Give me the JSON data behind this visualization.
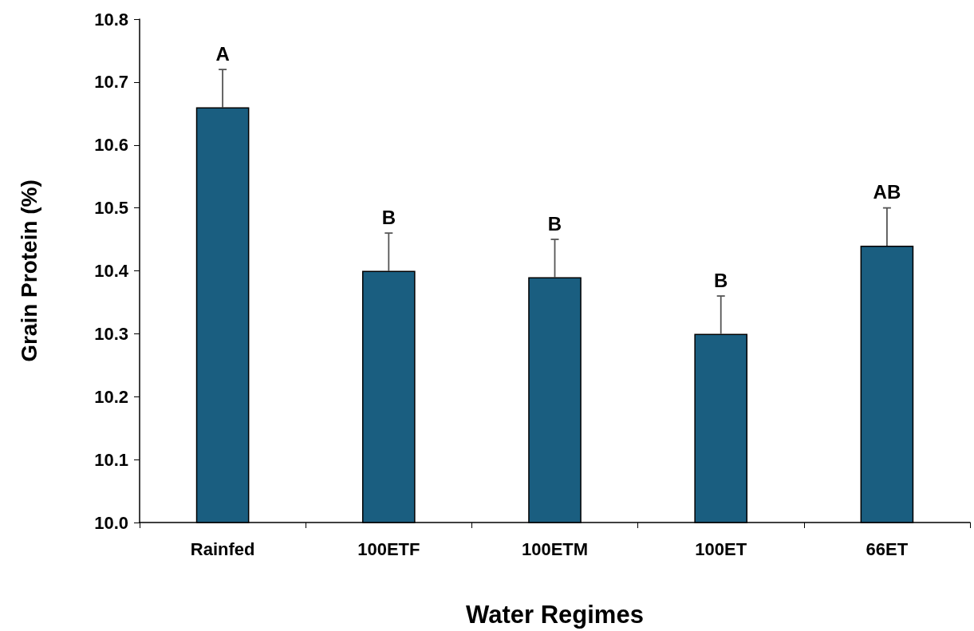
{
  "chart_data": {
    "type": "bar",
    "xlabel": "Water Regimes",
    "ylabel": "Grain Protein (%)",
    "categories": [
      "Rainfed",
      "100ETF",
      "100ETM",
      "100ET",
      "66ET"
    ],
    "values": [
      10.66,
      10.4,
      10.39,
      10.3,
      10.44
    ],
    "errors": [
      [
        10.66,
        10.72
      ],
      [
        10.4,
        10.46
      ],
      [
        10.39,
        10.45
      ],
      [
        10.3,
        10.36
      ],
      [
        10.44,
        10.5
      ]
    ],
    "color": "#1a5e80",
    "ylim": [
      10.0,
      10.8
    ],
    "yticks": [
      {
        "value": 10.0,
        "label": "10.0"
      },
      10.1,
      10.2,
      10.3,
      10.4,
      10.5,
      10.6,
      10.7,
      10.8
    ],
    "grid": false,
    "annotations": [
      {
        "text": "A",
        "x": "Rainfed",
        "y": 10.72
      },
      {
        "text": "B",
        "x": "100ETF",
        "y": 10.46
      },
      {
        "text": "B",
        "x": "100ETM",
        "y": 10.45
      },
      {
        "text": "B",
        "x": "100ET",
        "y": 10.36
      },
      {
        "text": "AB",
        "x": "66ET",
        "y": 10.5
      }
    ]
  }
}
